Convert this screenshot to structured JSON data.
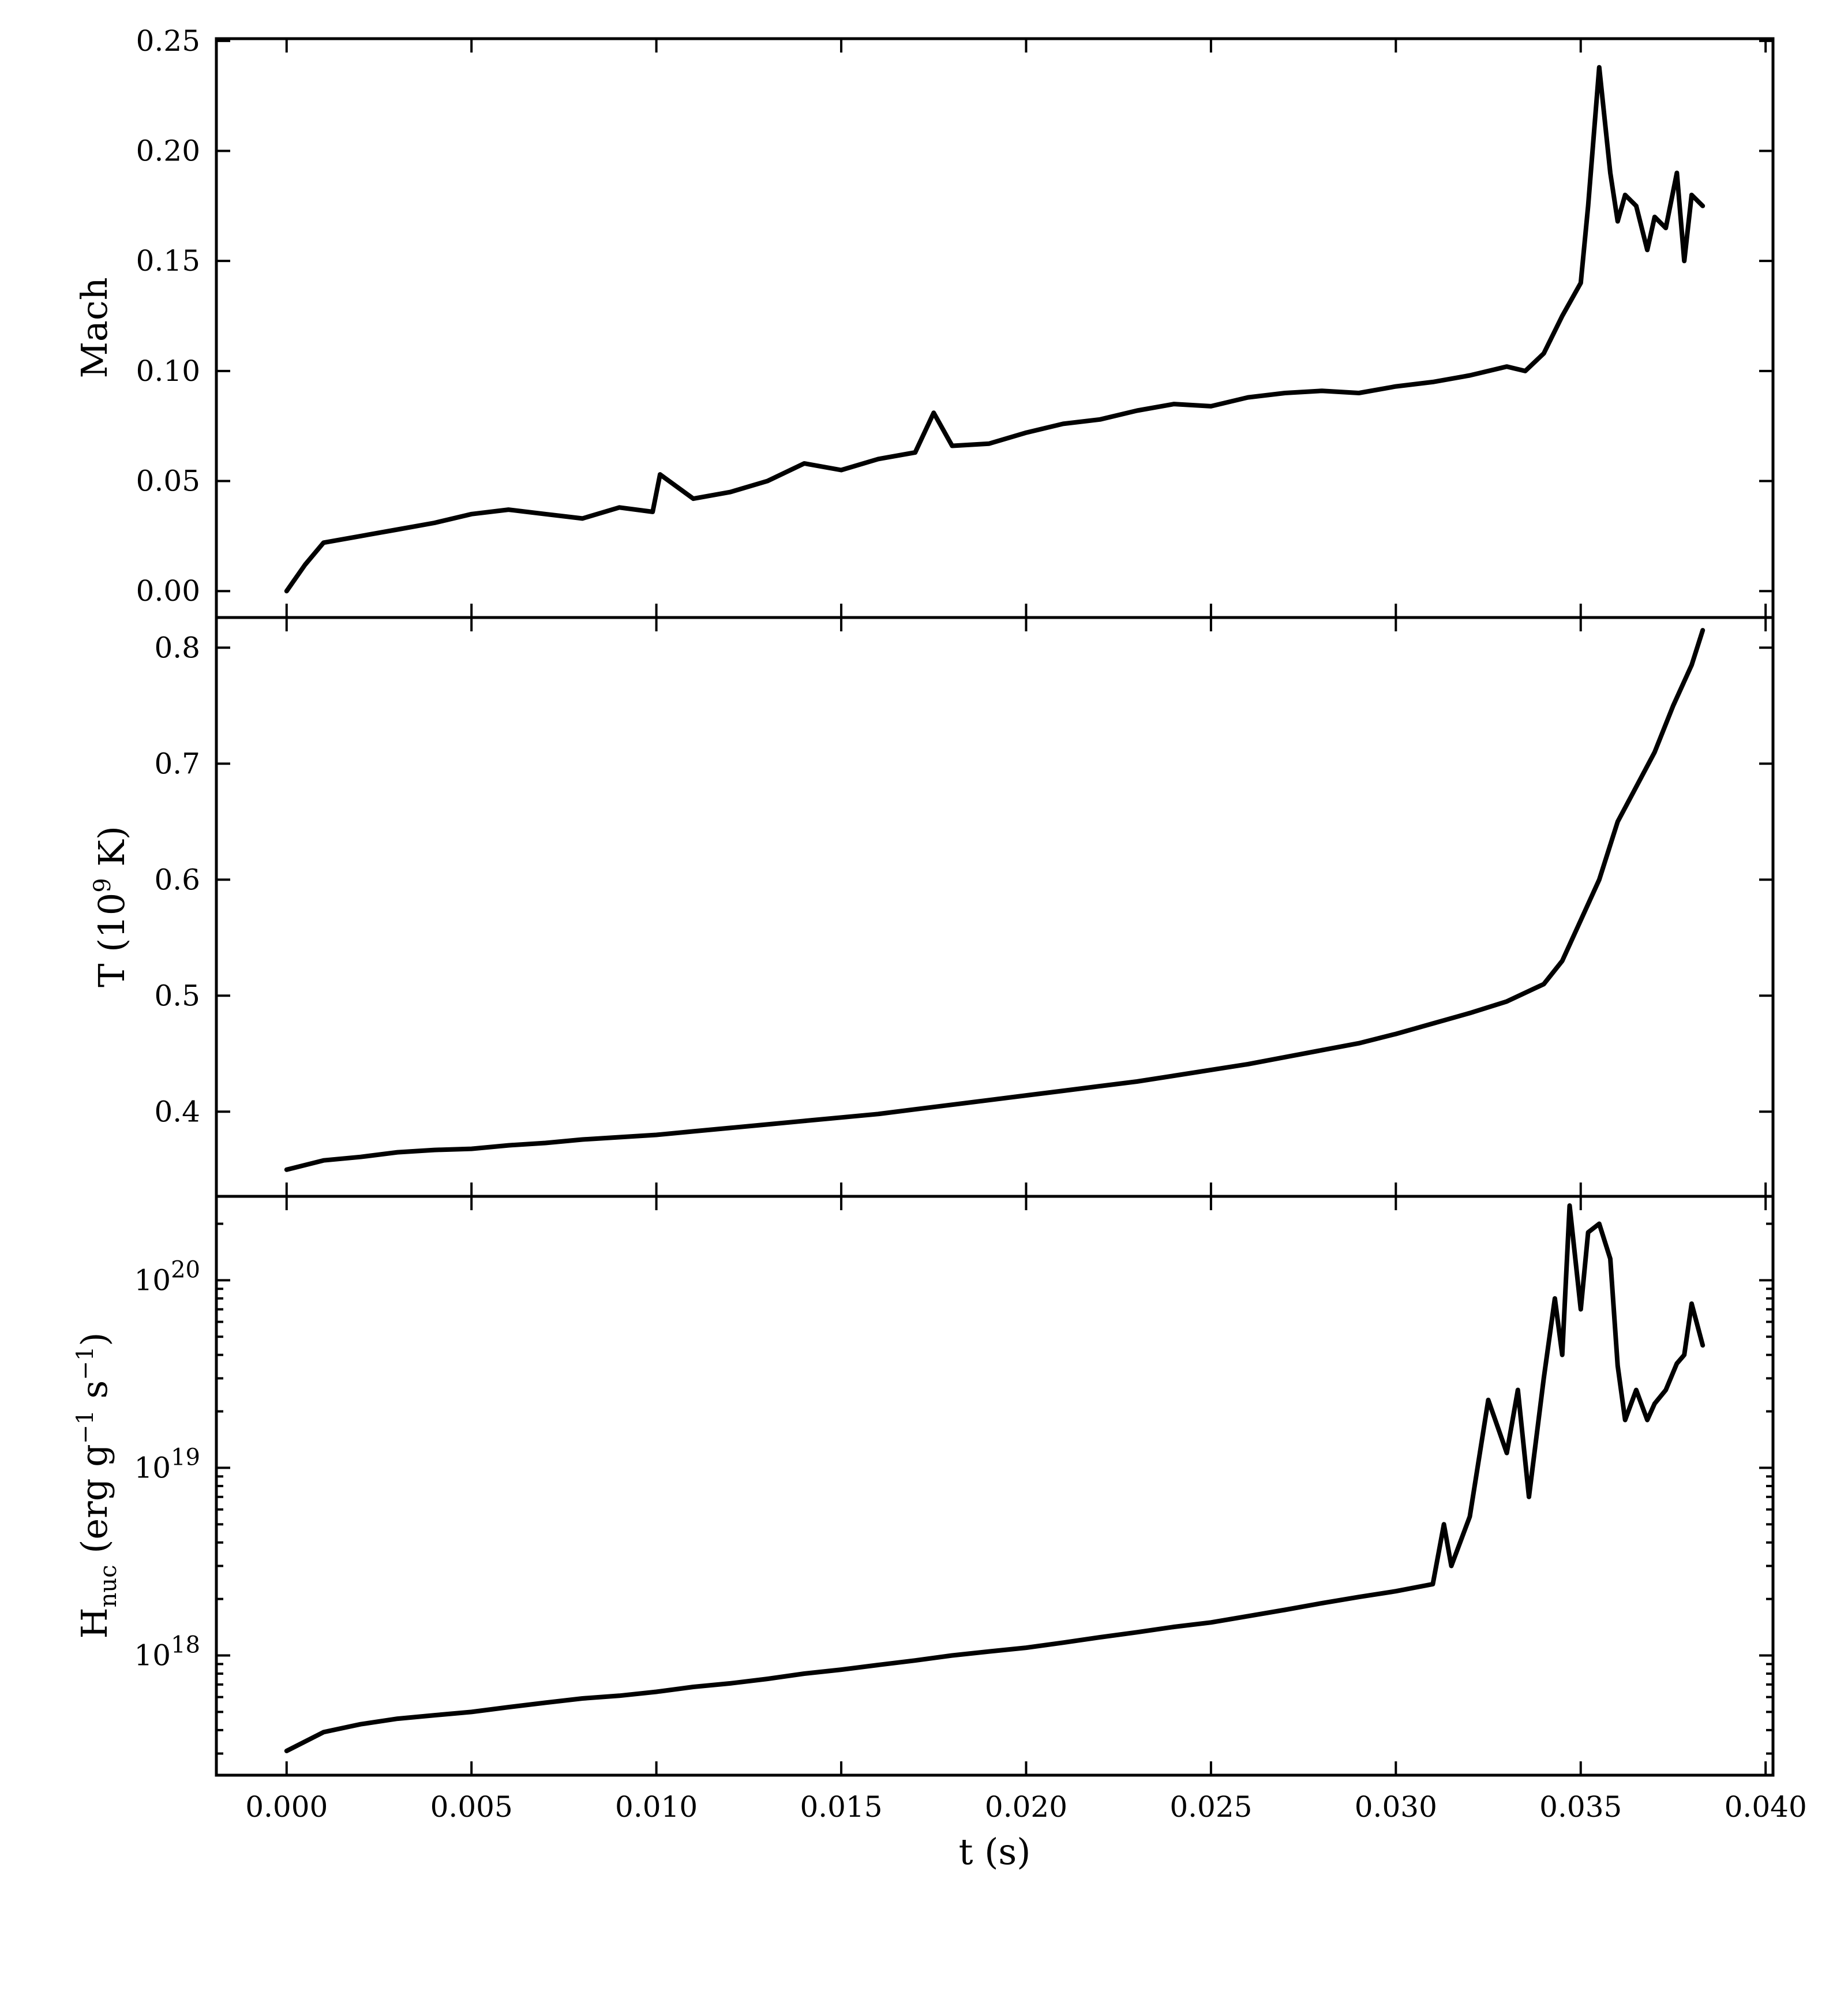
{
  "chart_data": {
    "type": "line",
    "shared_x": {
      "label": "t (s)",
      "lim": [
        -0.0019,
        0.0402
      ],
      "ticks": [
        0.0,
        0.005,
        0.01,
        0.015,
        0.02,
        0.025,
        0.03,
        0.035,
        0.04
      ],
      "tick_labels": [
        "0.000",
        "0.005",
        "0.010",
        "0.015",
        "0.020",
        "0.025",
        "0.030",
        "0.035",
        "0.040"
      ]
    },
    "panels": [
      {
        "ylabel": "Mach",
        "yscale": "linear",
        "ylim": [
          -0.012,
          0.251
        ],
        "yticks": [
          0.0,
          0.05,
          0.1,
          0.15,
          0.2,
          0.25
        ],
        "ytick_labels": [
          "0.00",
          "0.05",
          "0.10",
          "0.15",
          "0.20",
          "0.25"
        ],
        "x": [
          0.0,
          0.0005,
          0.001,
          0.002,
          0.003,
          0.004,
          0.005,
          0.006,
          0.007,
          0.008,
          0.009,
          0.0099,
          0.0101,
          0.011,
          0.012,
          0.013,
          0.014,
          0.015,
          0.016,
          0.017,
          0.0175,
          0.018,
          0.019,
          0.02,
          0.021,
          0.022,
          0.023,
          0.024,
          0.025,
          0.026,
          0.027,
          0.028,
          0.029,
          0.03,
          0.031,
          0.032,
          0.033,
          0.0335,
          0.034,
          0.0345,
          0.035,
          0.0352,
          0.0355,
          0.0358,
          0.036,
          0.0362,
          0.0365,
          0.0368,
          0.037,
          0.0373,
          0.0376,
          0.0378,
          0.038,
          0.0383
        ],
        "y": [
          0.0,
          0.012,
          0.022,
          0.025,
          0.028,
          0.031,
          0.035,
          0.037,
          0.035,
          0.033,
          0.038,
          0.036,
          0.053,
          0.042,
          0.045,
          0.05,
          0.058,
          0.055,
          0.06,
          0.063,
          0.081,
          0.066,
          0.067,
          0.072,
          0.076,
          0.078,
          0.082,
          0.085,
          0.084,
          0.088,
          0.09,
          0.091,
          0.09,
          0.093,
          0.095,
          0.098,
          0.102,
          0.1,
          0.108,
          0.125,
          0.14,
          0.175,
          0.238,
          0.19,
          0.168,
          0.18,
          0.175,
          0.155,
          0.17,
          0.165,
          0.19,
          0.15,
          0.18,
          0.175
        ]
      },
      {
        "ylabel": "T (10",
        "ylabel_sup": "9",
        "ylabel_end": " K)",
        "yscale": "linear",
        "ylim": [
          0.327,
          0.826
        ],
        "yticks": [
          0.4,
          0.5,
          0.6,
          0.7,
          0.8
        ],
        "ytick_labels": [
          "0.4",
          "0.5",
          "0.6",
          "0.7",
          "0.8"
        ],
        "x": [
          0.0,
          0.001,
          0.002,
          0.003,
          0.004,
          0.005,
          0.006,
          0.007,
          0.008,
          0.009,
          0.01,
          0.011,
          0.012,
          0.013,
          0.014,
          0.015,
          0.016,
          0.017,
          0.018,
          0.019,
          0.02,
          0.021,
          0.022,
          0.023,
          0.024,
          0.025,
          0.026,
          0.027,
          0.028,
          0.029,
          0.03,
          0.031,
          0.032,
          0.033,
          0.034,
          0.0345,
          0.035,
          0.0355,
          0.036,
          0.0365,
          0.037,
          0.0375,
          0.038,
          0.0383
        ],
        "y": [
          0.35,
          0.358,
          0.361,
          0.365,
          0.367,
          0.368,
          0.371,
          0.373,
          0.376,
          0.378,
          0.38,
          0.383,
          0.386,
          0.389,
          0.392,
          0.395,
          0.398,
          0.402,
          0.406,
          0.41,
          0.414,
          0.418,
          0.422,
          0.426,
          0.431,
          0.436,
          0.441,
          0.447,
          0.453,
          0.459,
          0.467,
          0.476,
          0.485,
          0.495,
          0.51,
          0.53,
          0.565,
          0.6,
          0.65,
          0.68,
          0.71,
          0.75,
          0.785,
          0.815
        ]
      },
      {
        "ylabel": "H",
        "ylabel_sub": "nuc",
        "ylabel_end": " (erg g",
        "ylabel_sup1": "−1",
        "ylabel_mid": " s",
        "ylabel_sup2": "−1",
        "ylabel_close": ")",
        "yscale": "log",
        "ylim": [
          2.3e+17,
          2.8e+20
        ],
        "yticks": [
          1e+18,
          1e+19,
          1e+20
        ],
        "ytick_labels": [
          {
            "base": "10",
            "exp": "18"
          },
          {
            "base": "10",
            "exp": "19"
          },
          {
            "base": "10",
            "exp": "20"
          }
        ],
        "x": [
          0.0,
          0.001,
          0.002,
          0.003,
          0.004,
          0.005,
          0.006,
          0.007,
          0.008,
          0.009,
          0.01,
          0.011,
          0.012,
          0.013,
          0.014,
          0.015,
          0.016,
          0.017,
          0.018,
          0.019,
          0.02,
          0.021,
          0.022,
          0.023,
          0.024,
          0.025,
          0.026,
          0.027,
          0.028,
          0.029,
          0.03,
          0.031,
          0.0313,
          0.0315,
          0.032,
          0.0325,
          0.033,
          0.0333,
          0.0336,
          0.034,
          0.0343,
          0.0345,
          0.0347,
          0.035,
          0.0352,
          0.0355,
          0.0358,
          0.036,
          0.0362,
          0.0365,
          0.0368,
          0.037,
          0.0373,
          0.0376,
          0.0378,
          0.038,
          0.0383
        ],
        "y": [
          3.1e+17,
          3.9e+17,
          4.3e+17,
          4.6e+17,
          4.8e+17,
          5e+17,
          5.3e+17,
          5.6e+17,
          5.9e+17,
          6.1e+17,
          6.4e+17,
          6.8e+17,
          7.1e+17,
          7.5e+17,
          8e+17,
          8.4e+17,
          8.9e+17,
          9.4e+17,
          1e+18,
          1.05e+18,
          1.1e+18,
          1.17e+18,
          1.25e+18,
          1.33e+18,
          1.42e+18,
          1.5e+18,
          1.62e+18,
          1.75e+18,
          1.9e+18,
          2.05e+18,
          2.2e+18,
          2.4e+18,
          5e+18,
          3e+18,
          5.5e+18,
          2.3e+19,
          1.2e+19,
          2.6e+19,
          7e+18,
          3e+19,
          8e+19,
          4e+19,
          2.5e+20,
          7e+19,
          1.8e+20,
          2e+20,
          1.3e+20,
          3.5e+19,
          1.8e+19,
          2.6e+19,
          1.8e+19,
          2.2e+19,
          2.6e+19,
          3.6e+19,
          4e+19,
          7.5e+19,
          4.5e+19
        ]
      }
    ]
  }
}
